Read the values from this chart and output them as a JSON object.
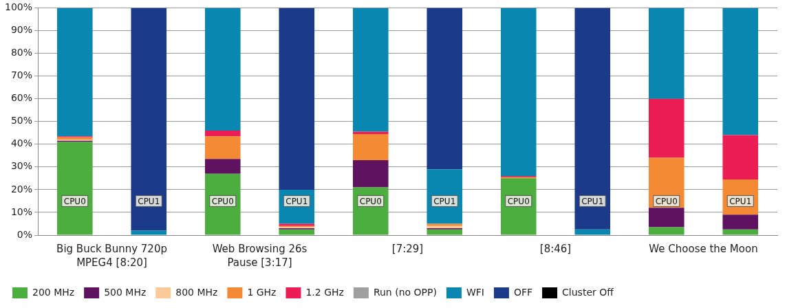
{
  "chart_data": {
    "type": "bar",
    "stacked": true,
    "categories": [
      "CPU0",
      "CPU1",
      "CPU0",
      "CPU1",
      "CPU0",
      "CPU1",
      "CPU0",
      "CPU1",
      "CPU0",
      "CPU1"
    ],
    "series": [
      {
        "name": "200 MHz",
        "color": "#4cae3e",
        "values": [
          41,
          0,
          27,
          2.5,
          21,
          2.5,
          25,
          0,
          3.5,
          2.5
        ]
      },
      {
        "name": "500 MHz",
        "color": "#5e1260",
        "values": [
          0.5,
          0,
          6.5,
          0.5,
          12,
          0.5,
          0,
          0,
          8.5,
          6.5
        ]
      },
      {
        "name": "800 MHz",
        "color": "#fcc99b",
        "values": [
          0.5,
          0,
          0,
          0.5,
          0,
          1,
          0,
          0,
          0,
          0
        ]
      },
      {
        "name": "1 GHz",
        "color": "#f48a33",
        "values": [
          1,
          0,
          10,
          0.5,
          11.5,
          1,
          0.5,
          0,
          22,
          15.5
        ]
      },
      {
        "name": "1.2 GHz",
        "color": "#ec1c55",
        "values": [
          0.5,
          0,
          2.5,
          1,
          1,
          0,
          0.5,
          0,
          26,
          19.5
        ]
      },
      {
        "name": "Run (no OPP)",
        "color": "#a0a0a0",
        "values": [
          0,
          0,
          0,
          0,
          0,
          0,
          0,
          0,
          0,
          0
        ]
      },
      {
        "name": "WFI",
        "color": "#0a87b0",
        "values": [
          56.5,
          2,
          54,
          15,
          54.5,
          24,
          74,
          2.5,
          40,
          56
        ]
      },
      {
        "name": "OFF",
        "color": "#1c3a8a",
        "values": [
          0,
          98,
          0,
          80,
          0,
          71,
          0,
          97.5,
          0,
          0
        ]
      },
      {
        "name": "Cluster Off",
        "color": "#000000",
        "values": [
          0,
          0,
          0,
          0,
          0,
          0,
          0,
          0,
          0,
          0
        ]
      }
    ],
    "ylim": [
      0,
      100
    ],
    "yticks": [
      {
        "value": 0,
        "label": "0%"
      },
      {
        "value": 10,
        "label": "10%"
      },
      {
        "value": 20,
        "label": "20%"
      },
      {
        "value": 30,
        "label": "30%"
      },
      {
        "value": 40,
        "label": "40%"
      },
      {
        "value": 50,
        "label": "50%"
      },
      {
        "value": 60,
        "label": "60%"
      },
      {
        "value": 70,
        "label": "70%"
      },
      {
        "value": 80,
        "label": "80%"
      },
      {
        "value": 90,
        "label": "90%"
      },
      {
        "value": 100,
        "label": "100%"
      }
    ],
    "grid": "y",
    "legend": "bottom",
    "annotations": [
      "Big Buck Bunny 720p MPEG4 [8:20]",
      "Web Browsing 26s Pause [3:17]",
      "[7:29]",
      "[8:46]",
      "We Choose the Moon"
    ]
  }
}
